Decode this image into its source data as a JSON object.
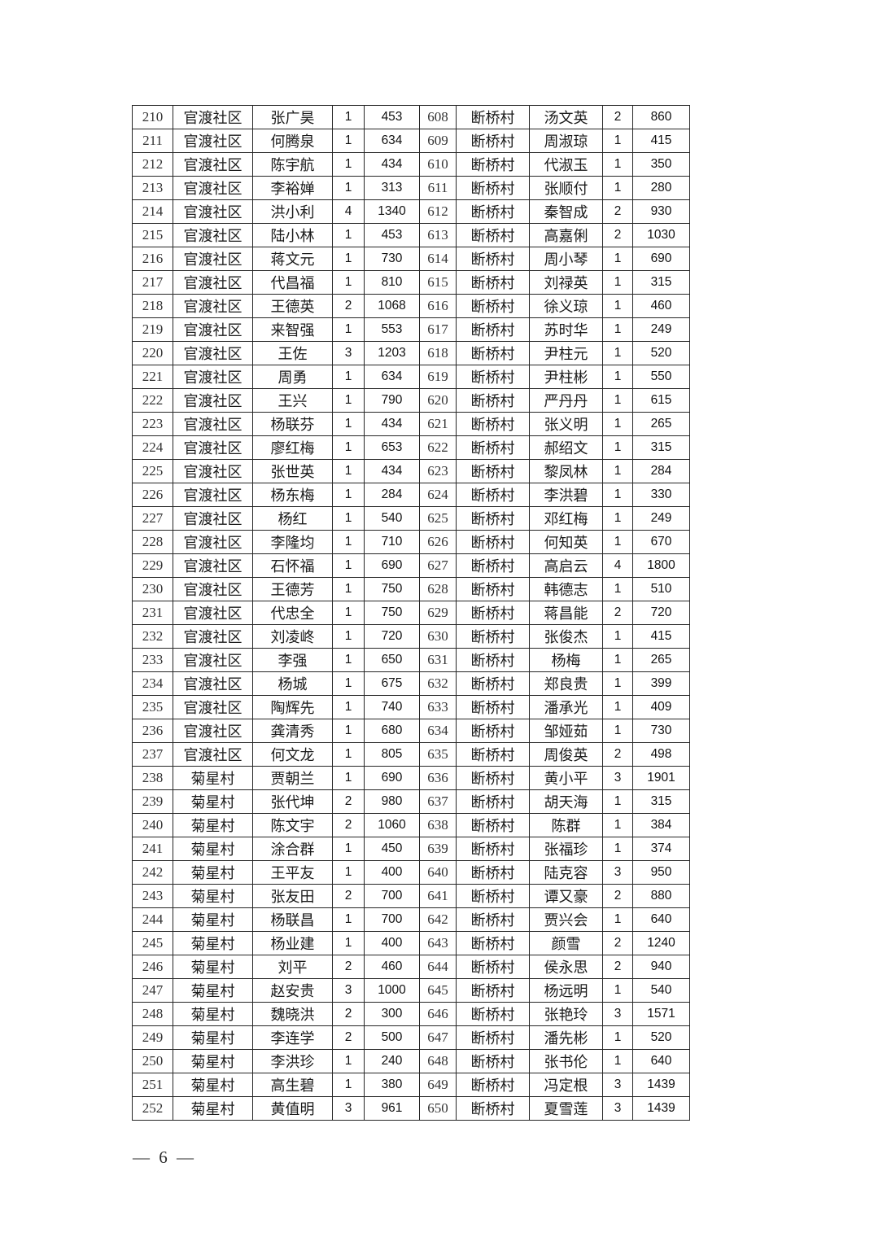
{
  "page": {
    "footer_page_label": "— 6 —"
  },
  "table": {
    "rows": [
      [
        "210",
        "官渡社区",
        "张广昊",
        "1",
        "453",
        "608",
        "断桥村",
        "汤文英",
        "2",
        "860"
      ],
      [
        "211",
        "官渡社区",
        "何腾泉",
        "1",
        "634",
        "609",
        "断桥村",
        "周淑琼",
        "1",
        "415"
      ],
      [
        "212",
        "官渡社区",
        "陈宇航",
        "1",
        "434",
        "610",
        "断桥村",
        "代淑玉",
        "1",
        "350"
      ],
      [
        "213",
        "官渡社区",
        "李裕婵",
        "1",
        "313",
        "611",
        "断桥村",
        "张顺付",
        "1",
        "280"
      ],
      [
        "214",
        "官渡社区",
        "洪小利",
        "4",
        "1340",
        "612",
        "断桥村",
        "秦智成",
        "2",
        "930"
      ],
      [
        "215",
        "官渡社区",
        "陆小林",
        "1",
        "453",
        "613",
        "断桥村",
        "高嘉俐",
        "2",
        "1030"
      ],
      [
        "216",
        "官渡社区",
        "蒋文元",
        "1",
        "730",
        "614",
        "断桥村",
        "周小琴",
        "1",
        "690"
      ],
      [
        "217",
        "官渡社区",
        "代昌福",
        "1",
        "810",
        "615",
        "断桥村",
        "刘禄英",
        "1",
        "315"
      ],
      [
        "218",
        "官渡社区",
        "王德英",
        "2",
        "1068",
        "616",
        "断桥村",
        "徐义琼",
        "1",
        "460"
      ],
      [
        "219",
        "官渡社区",
        "来智强",
        "1",
        "553",
        "617",
        "断桥村",
        "苏时华",
        "1",
        "249"
      ],
      [
        "220",
        "官渡社区",
        "王佐",
        "3",
        "1203",
        "618",
        "断桥村",
        "尹柱元",
        "1",
        "520"
      ],
      [
        "221",
        "官渡社区",
        "周勇",
        "1",
        "634",
        "619",
        "断桥村",
        "尹柱彬",
        "1",
        "550"
      ],
      [
        "222",
        "官渡社区",
        "王兴",
        "1",
        "790",
        "620",
        "断桥村",
        "严丹丹",
        "1",
        "615"
      ],
      [
        "223",
        "官渡社区",
        "杨联芬",
        "1",
        "434",
        "621",
        "断桥村",
        "张义明",
        "1",
        "265"
      ],
      [
        "224",
        "官渡社区",
        "廖红梅",
        "1",
        "653",
        "622",
        "断桥村",
        "郝绍文",
        "1",
        "315"
      ],
      [
        "225",
        "官渡社区",
        "张世英",
        "1",
        "434",
        "623",
        "断桥村",
        "黎凤林",
        "1",
        "284"
      ],
      [
        "226",
        "官渡社区",
        "杨东梅",
        "1",
        "284",
        "624",
        "断桥村",
        "李洪碧",
        "1",
        "330"
      ],
      [
        "227",
        "官渡社区",
        "杨红",
        "1",
        "540",
        "625",
        "断桥村",
        "邓红梅",
        "1",
        "249"
      ],
      [
        "228",
        "官渡社区",
        "李隆均",
        "1",
        "710",
        "626",
        "断桥村",
        "何知英",
        "1",
        "670"
      ],
      [
        "229",
        "官渡社区",
        "石怀福",
        "1",
        "690",
        "627",
        "断桥村",
        "高启云",
        "4",
        "1800"
      ],
      [
        "230",
        "官渡社区",
        "王德芳",
        "1",
        "750",
        "628",
        "断桥村",
        "韩德志",
        "1",
        "510"
      ],
      [
        "231",
        "官渡社区",
        "代忠全",
        "1",
        "750",
        "629",
        "断桥村",
        "蒋昌能",
        "2",
        "720"
      ],
      [
        "232",
        "官渡社区",
        "刘凌峂",
        "1",
        "720",
        "630",
        "断桥村",
        "张俊杰",
        "1",
        "415"
      ],
      [
        "233",
        "官渡社区",
        "李强",
        "1",
        "650",
        "631",
        "断桥村",
        "杨梅",
        "1",
        "265"
      ],
      [
        "234",
        "官渡社区",
        "杨城",
        "1",
        "675",
        "632",
        "断桥村",
        "郑良贵",
        "1",
        "399"
      ],
      [
        "235",
        "官渡社区",
        "陶辉先",
        "1",
        "740",
        "633",
        "断桥村",
        "潘承光",
        "1",
        "409"
      ],
      [
        "236",
        "官渡社区",
        "龚清秀",
        "1",
        "680",
        "634",
        "断桥村",
        "邹娅茹",
        "1",
        "730"
      ],
      [
        "237",
        "官渡社区",
        "何文龙",
        "1",
        "805",
        "635",
        "断桥村",
        "周俊英",
        "2",
        "498"
      ],
      [
        "238",
        "菊星村",
        "贾朝兰",
        "1",
        "690",
        "636",
        "断桥村",
        "黄小平",
        "3",
        "1901"
      ],
      [
        "239",
        "菊星村",
        "张代坤",
        "2",
        "980",
        "637",
        "断桥村",
        "胡天海",
        "1",
        "315"
      ],
      [
        "240",
        "菊星村",
        "陈文宇",
        "2",
        "1060",
        "638",
        "断桥村",
        "陈群",
        "1",
        "384"
      ],
      [
        "241",
        "菊星村",
        "涂合群",
        "1",
        "450",
        "639",
        "断桥村",
        "张福珍",
        "1",
        "374"
      ],
      [
        "242",
        "菊星村",
        "王平友",
        "1",
        "400",
        "640",
        "断桥村",
        "陆克容",
        "3",
        "950"
      ],
      [
        "243",
        "菊星村",
        "张友田",
        "2",
        "700",
        "641",
        "断桥村",
        "谭又豪",
        "2",
        "880"
      ],
      [
        "244",
        "菊星村",
        "杨联昌",
        "1",
        "700",
        "642",
        "断桥村",
        "贾兴会",
        "1",
        "640"
      ],
      [
        "245",
        "菊星村",
        "杨业建",
        "1",
        "400",
        "643",
        "断桥村",
        "颜雪",
        "2",
        "1240"
      ],
      [
        "246",
        "菊星村",
        "刘平",
        "2",
        "460",
        "644",
        "断桥村",
        "侯永思",
        "2",
        "940"
      ],
      [
        "247",
        "菊星村",
        "赵安贵",
        "3",
        "1000",
        "645",
        "断桥村",
        "杨远明",
        "1",
        "540"
      ],
      [
        "248",
        "菊星村",
        "魏晓洪",
        "2",
        "300",
        "646",
        "断桥村",
        "张艳玲",
        "3",
        "1571"
      ],
      [
        "249",
        "菊星村",
        "李连学",
        "2",
        "500",
        "647",
        "断桥村",
        "潘先彬",
        "1",
        "520"
      ],
      [
        "250",
        "菊星村",
        "李洪珍",
        "1",
        "240",
        "648",
        "断桥村",
        "张书伦",
        "1",
        "640"
      ],
      [
        "251",
        "菊星村",
        "高生碧",
        "1",
        "380",
        "649",
        "断桥村",
        "冯定根",
        "3",
        "1439"
      ],
      [
        "252",
        "菊星村",
        "黄值明",
        "3",
        "961",
        "650",
        "断桥村",
        "夏雪莲",
        "3",
        "1439"
      ]
    ]
  }
}
